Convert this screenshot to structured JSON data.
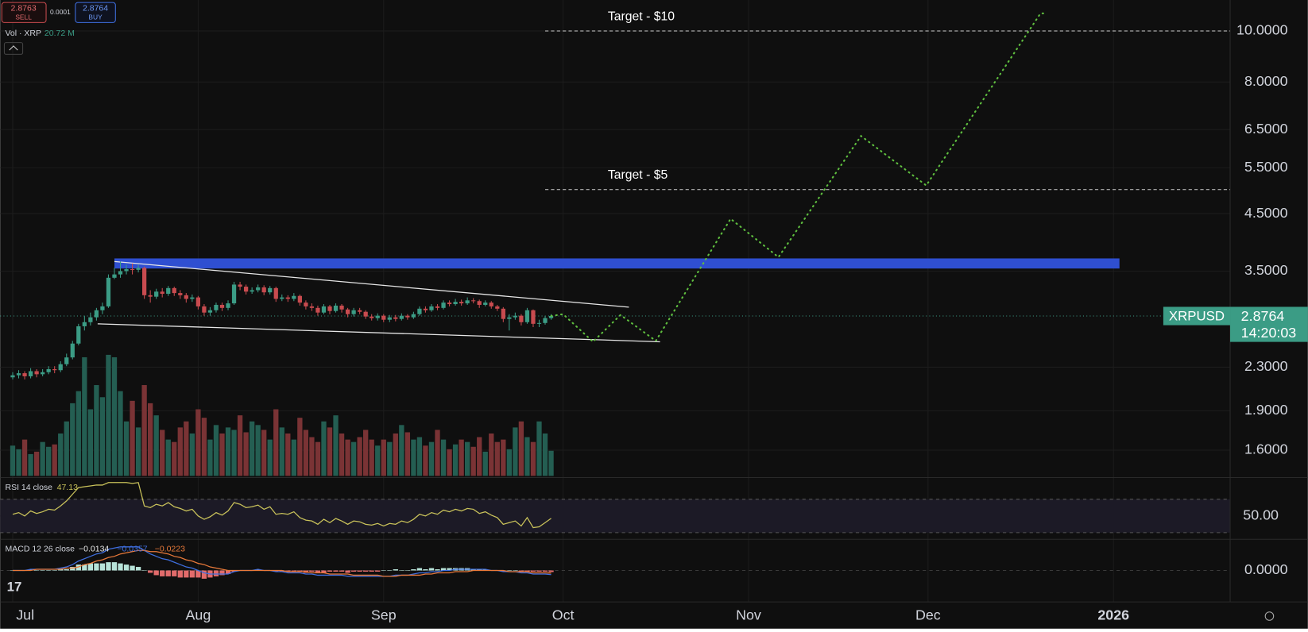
{
  "header": {
    "sell": {
      "price": "2.8763",
      "label": "SELL"
    },
    "spread": "0.0001",
    "buy": {
      "price": "2.8764",
      "label": "BUY"
    }
  },
  "chart_data": {
    "type": "candlestick",
    "log": true,
    "grid": true,
    "up_color": "#3b9c85",
    "down_color": "#c84b4f",
    "xlim": [
      -2.1,
      203.5
    ],
    "xticks": [
      {
        "value": 0,
        "label": "Jul"
      },
      {
        "value": 31,
        "label": "Aug"
      },
      {
        "value": 62,
        "label": "Sep"
      },
      {
        "value": 92,
        "label": "Oct"
      },
      {
        "value": 123,
        "label": "Nov"
      },
      {
        "value": 153,
        "label": "Dec"
      },
      {
        "value": 184,
        "label": "2026"
      }
    ],
    "ylim": [
      1.43,
      11.45
    ],
    "yticks": [
      {
        "value": 10,
        "label": "10.0000"
      },
      {
        "value": 8,
        "label": "8.0000"
      },
      {
        "value": 6.5,
        "label": "6.5000"
      },
      {
        "value": 5.5,
        "label": "5.5000"
      },
      {
        "value": 4.5,
        "label": "4.5000"
      },
      {
        "value": 3.5,
        "label": "3.5000"
      },
      {
        "value": 2.3,
        "label": "2.3000"
      },
      {
        "value": 1.9,
        "label": "1.9000"
      },
      {
        "value": 1.6,
        "label": "1.6000"
      }
    ],
    "open": [
      2.2,
      2.22,
      2.24,
      2.21,
      2.26,
      2.23,
      2.25,
      2.28,
      2.27,
      2.33,
      2.4,
      2.55,
      2.75,
      2.8,
      2.86,
      2.95,
      3.0,
      3.4,
      3.45,
      3.5,
      3.53,
      3.52,
      3.55,
      3.15,
      3.13,
      3.2,
      3.17,
      3.25,
      3.18,
      3.15,
      3.1,
      3.12,
      3.0,
      2.92,
      2.95,
      3.02,
      2.98,
      3.04,
      3.3,
      3.27,
      3.2,
      3.22,
      3.26,
      3.19,
      3.25,
      3.1,
      3.12,
      3.1,
      3.14,
      3.05,
      3.0,
      2.98,
      2.92,
      3.0,
      2.94,
      3.01,
      2.96,
      2.9,
      2.95,
      2.93,
      2.87,
      2.85,
      2.88,
      2.83,
      2.86,
      2.84,
      2.88,
      2.86,
      2.9,
      2.97,
      2.95,
      3.0,
      2.98,
      3.05,
      3.03,
      3.06,
      3.04,
      3.08,
      3.07,
      3.02,
      3.05,
      3.0,
      2.97,
      2.84,
      2.86,
      2.88,
      2.8,
      2.95,
      2.78,
      2.79,
      2.85
    ],
    "high": [
      2.25,
      2.27,
      2.26,
      2.29,
      2.28,
      2.28,
      2.31,
      2.31,
      2.36,
      2.44,
      2.58,
      2.78,
      2.88,
      2.92,
      2.98,
      3.05,
      3.45,
      3.55,
      3.65,
      3.6,
      3.62,
      3.6,
      3.57,
      3.22,
      3.24,
      3.25,
      3.28,
      3.27,
      3.22,
      3.18,
      3.16,
      3.14,
      3.03,
      2.99,
      3.05,
      3.05,
      3.08,
      3.34,
      3.34,
      3.3,
      3.26,
      3.3,
      3.29,
      3.28,
      3.27,
      3.16,
      3.15,
      3.18,
      3.16,
      3.08,
      3.04,
      3.01,
      3.03,
      3.02,
      3.04,
      3.03,
      2.98,
      2.98,
      2.98,
      2.95,
      2.9,
      2.91,
      2.9,
      2.89,
      2.89,
      2.91,
      2.9,
      2.93,
      3.0,
      3.0,
      3.03,
      3.03,
      3.08,
      3.08,
      3.1,
      3.09,
      3.12,
      3.11,
      3.09,
      3.08,
      3.07,
      3.02,
      2.99,
      2.9,
      2.92,
      2.9,
      2.98,
      2.96,
      2.83,
      2.88,
      2.9
    ],
    "low": [
      2.18,
      2.19,
      2.18,
      2.19,
      2.2,
      2.21,
      2.23,
      2.24,
      2.25,
      2.31,
      2.38,
      2.53,
      2.7,
      2.76,
      2.82,
      2.9,
      2.98,
      3.38,
      3.4,
      3.45,
      3.45,
      3.48,
      3.1,
      3.05,
      3.1,
      3.12,
      3.14,
      3.14,
      3.1,
      3.05,
      3.06,
      2.96,
      2.88,
      2.88,
      2.92,
      2.94,
      2.95,
      3.02,
      3.22,
      3.16,
      3.17,
      3.19,
      3.15,
      3.16,
      3.06,
      3.07,
      3.06,
      3.07,
      3.01,
      2.96,
      2.94,
      2.88,
      2.9,
      2.9,
      2.92,
      2.92,
      2.86,
      2.87,
      2.9,
      2.84,
      2.82,
      2.82,
      2.8,
      2.8,
      2.81,
      2.82,
      2.83,
      2.84,
      2.88,
      2.92,
      2.93,
      2.95,
      2.96,
      3.0,
      3.01,
      3.01,
      3.02,
      3.04,
      2.98,
      3.0,
      2.97,
      2.94,
      2.8,
      2.7,
      2.83,
      2.76,
      2.78,
      2.74,
      2.74,
      2.77,
      2.83
    ],
    "close": [
      2.22,
      2.24,
      2.21,
      2.26,
      2.23,
      2.25,
      2.28,
      2.27,
      2.33,
      2.4,
      2.55,
      2.75,
      2.8,
      2.86,
      2.95,
      3.0,
      3.4,
      3.45,
      3.5,
      3.53,
      3.52,
      3.55,
      3.15,
      3.13,
      3.2,
      3.17,
      3.25,
      3.18,
      3.15,
      3.1,
      3.12,
      3.0,
      2.92,
      2.95,
      3.02,
      2.98,
      3.04,
      3.3,
      3.27,
      3.2,
      3.22,
      3.26,
      3.19,
      3.25,
      3.1,
      3.12,
      3.1,
      3.14,
      3.05,
      3.0,
      2.98,
      2.92,
      3.0,
      2.94,
      3.01,
      2.96,
      2.9,
      2.95,
      2.93,
      2.87,
      2.85,
      2.88,
      2.83,
      2.86,
      2.84,
      2.88,
      2.86,
      2.9,
      2.97,
      2.95,
      3.0,
      2.98,
      3.05,
      3.03,
      3.06,
      3.04,
      3.08,
      3.07,
      3.02,
      3.05,
      3.0,
      2.97,
      2.84,
      2.86,
      2.88,
      2.8,
      2.95,
      2.78,
      2.79,
      2.85,
      2.8764
    ],
    "volume": {
      "name": "Vol · XRP",
      "current_label": "20.72 M",
      "values": [
        25,
        22,
        30,
        18,
        20,
        28,
        24,
        26,
        35,
        45,
        60,
        70,
        98,
        55,
        75,
        65,
        100,
        98,
        70,
        45,
        62,
        40,
        75,
        60,
        50,
        38,
        30,
        28,
        40,
        45,
        35,
        55,
        48,
        30,
        42,
        35,
        40,
        38,
        50,
        36,
        45,
        42,
        38,
        30,
        55,
        40,
        35,
        30,
        48,
        38,
        32,
        28,
        45,
        40,
        50,
        35,
        30,
        28,
        32,
        38,
        30,
        25,
        30,
        28,
        35,
        42,
        36,
        30,
        32,
        25,
        28,
        38,
        30,
        22,
        26,
        30,
        28,
        24,
        32,
        20,
        35,
        28,
        30,
        22,
        40,
        45,
        32,
        28,
        45,
        35,
        20.72
      ]
    },
    "targets": [
      {
        "label": "Target - $10",
        "value": 10,
        "x": [
          89,
          203.5
        ]
      },
      {
        "label": "Target - $5",
        "value": 5,
        "x": [
          89,
          203.5
        ]
      }
    ],
    "zone": {
      "x": [
        17,
        185
      ],
      "y": [
        3.54,
        3.7
      ],
      "color": "#2f4fd1"
    },
    "channel": [
      {
        "x": [
          17,
          103
        ],
        "y": [
          3.65,
          2.99
        ]
      },
      {
        "x": [
          14.2,
          108.2
        ],
        "y": [
          2.78,
          2.57
        ]
      }
    ],
    "projection": {
      "color": "#5fbf3f",
      "x": [
        90,
        92,
        97,
        101.6,
        107.5,
        120,
        128,
        141.8,
        152.7,
        171.8,
        172.8
      ],
      "y": [
        2.8764,
        2.9,
        2.57,
        2.89,
        2.58,
        4.4,
        3.72,
        6.32,
        5.09,
        10.8,
        10.8
      ]
    },
    "price_line": {
      "symbol": "XRPUSD",
      "value": 2.8764,
      "label": "2.8764",
      "countdown": "14:20:03",
      "color": "#3b9c85"
    }
  },
  "rsi": {
    "title": "RSI 14 close",
    "current": "47.13",
    "color": "#c9c25a",
    "ylim": [
      23,
      93
    ],
    "yticks": [
      {
        "value": 50,
        "label": "50.00"
      }
    ],
    "bands": [
      30,
      70
    ],
    "values": [
      52,
      54,
      50,
      56,
      53,
      55,
      58,
      57,
      62,
      68,
      76,
      84,
      85,
      86,
      87,
      87,
      90,
      90,
      90,
      90,
      89,
      90,
      62,
      60,
      64,
      62,
      66,
      61,
      59,
      56,
      58,
      50,
      46,
      49,
      54,
      51,
      56,
      66,
      64,
      60,
      61,
      63,
      58,
      61,
      52,
      53,
      52,
      55,
      48,
      45,
      44,
      40,
      46,
      42,
      47,
      44,
      40,
      44,
      43,
      40,
      39,
      41,
      38,
      41,
      40,
      44,
      42,
      46,
      52,
      50,
      54,
      52,
      57,
      55,
      58,
      56,
      59,
      58,
      53,
      55,
      51,
      48,
      40,
      42,
      44,
      38,
      48,
      36,
      37,
      42,
      47.13
    ]
  },
  "macd": {
    "title": "MACD 12 26 close",
    "labels": [
      "−0.0134",
      "−0.0357",
      "−0.0223"
    ],
    "colors": [
      "#e8e8e8",
      "#3f6fe0",
      "#e8793a"
    ],
    "ylim": [
      -0.26,
      0.25
    ],
    "yticks": [
      {
        "value": 0,
        "label": "0.0000"
      }
    ],
    "histogram": [
      0,
      0,
      0,
      0.01,
      0,
      0,
      0,
      0,
      0.01,
      0.01,
      0.03,
      0.05,
      0.05,
      0.06,
      0.06,
      0.06,
      0.07,
      0.07,
      0.06,
      0.05,
      0.04,
      0.03,
      0,
      -0.02,
      -0.04,
      -0.05,
      -0.05,
      -0.05,
      -0.06,
      -0.06,
      -0.06,
      -0.06,
      -0.07,
      -0.06,
      -0.05,
      -0.04,
      -0.03,
      -0.01,
      0,
      0,
      0,
      0.01,
      0,
      0,
      -0.01,
      -0.01,
      -0.01,
      -0.01,
      -0.01,
      -0.02,
      -0.01,
      -0.02,
      -0.02,
      -0.01,
      -0.01,
      -0.01,
      -0.02,
      -0.01,
      -0.01,
      -0.01,
      -0.01,
      -0.01,
      0,
      0,
      0.01,
      0,
      0,
      0.01,
      0.02,
      0.01,
      0.02,
      0.01,
      0.02,
      0.02,
      0.02,
      0.02,
      0.02,
      0.01,
      0.01,
      0.01,
      0,
      0,
      -0.01,
      0,
      0,
      -0.01,
      -0.01,
      -0.01,
      -0.01,
      -0.01,
      -0.0134
    ],
    "macd": [
      0,
      0,
      0,
      0.01,
      0.01,
      0.01,
      0.01,
      0.01,
      0.02,
      0.03,
      0.05,
      0.08,
      0.1,
      0.12,
      0.14,
      0.15,
      0.18,
      0.19,
      0.2,
      0.2,
      0.2,
      0.2,
      0.17,
      0.14,
      0.12,
      0.1,
      0.09,
      0.07,
      0.05,
      0.03,
      0.02,
      0,
      -0.02,
      -0.03,
      -0.03,
      -0.03,
      -0.03,
      -0.01,
      0,
      0,
      0,
      0.01,
      0,
      0,
      -0.01,
      -0.01,
      -0.02,
      -0.02,
      -0.02,
      -0.03,
      -0.03,
      -0.04,
      -0.04,
      -0.04,
      -0.04,
      -0.04,
      -0.05,
      -0.05,
      -0.05,
      -0.05,
      -0.05,
      -0.05,
      -0.05,
      -0.05,
      -0.04,
      -0.04,
      -0.04,
      -0.03,
      -0.02,
      -0.02,
      -0.01,
      -0.01,
      0,
      0,
      0.01,
      0.01,
      0.01,
      0.01,
      0.01,
      0.01,
      0,
      0,
      -0.01,
      -0.01,
      -0.01,
      -0.02,
      -0.02,
      -0.03,
      -0.03,
      -0.03,
      -0.0357
    ],
    "signal": [
      0,
      0,
      0,
      0,
      0.01,
      0.01,
      0.01,
      0.01,
      0.01,
      0.02,
      0.02,
      0.03,
      0.05,
      0.06,
      0.08,
      0.09,
      0.11,
      0.12,
      0.14,
      0.15,
      0.16,
      0.17,
      0.17,
      0.16,
      0.16,
      0.15,
      0.14,
      0.12,
      0.11,
      0.09,
      0.08,
      0.06,
      0.05,
      0.03,
      0.02,
      0.01,
      0,
      0,
      0,
      0,
      0,
      0,
      0,
      0,
      0,
      0,
      -0.01,
      -0.01,
      -0.01,
      -0.01,
      -0.02,
      -0.02,
      -0.02,
      -0.03,
      -0.03,
      -0.03,
      -0.03,
      -0.04,
      -0.04,
      -0.04,
      -0.04,
      -0.04,
      -0.05,
      -0.05,
      -0.05,
      -0.04,
      -0.04,
      -0.04,
      -0.04,
      -0.03,
      -0.03,
      -0.02,
      -0.02,
      -0.02,
      -0.01,
      -0.01,
      -0.01,
      0,
      0,
      0,
      0,
      0,
      0,
      -0.01,
      -0.01,
      -0.01,
      -0.01,
      -0.02,
      -0.02,
      -0.02,
      -0.0223
    ]
  }
}
